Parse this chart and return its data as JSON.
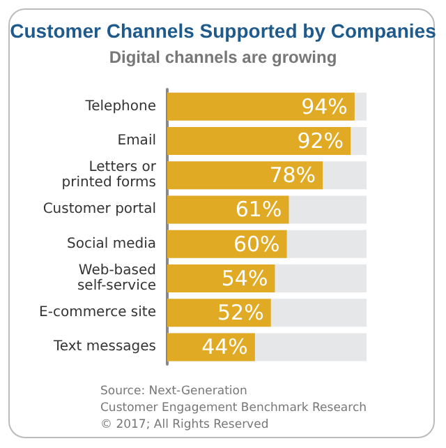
{
  "chart_data": {
    "type": "bar",
    "orientation": "horizontal",
    "title": "Customer Channels Supported by Companies",
    "subtitle": "Digital channels are growing",
    "categories": [
      "Telephone",
      "Email",
      "Letters or\nprinted forms",
      "Customer portal",
      "Social media",
      "Web-based\nself-service",
      "E-commerce site",
      "Text messages"
    ],
    "values": [
      94,
      92,
      78,
      61,
      60,
      54,
      52,
      44
    ],
    "value_labels": [
      "94%",
      "92%",
      "78%",
      "61%",
      "60%",
      "54%",
      "52%",
      "44%"
    ],
    "color": "#e0aa25",
    "xlim": [
      0,
      100
    ],
    "tick_labels": "y",
    "annotations": [
      "Source: Next-Generation",
      "Customer Engagement Benchmark Research",
      "© 2017; All Rights Reserved"
    ]
  }
}
